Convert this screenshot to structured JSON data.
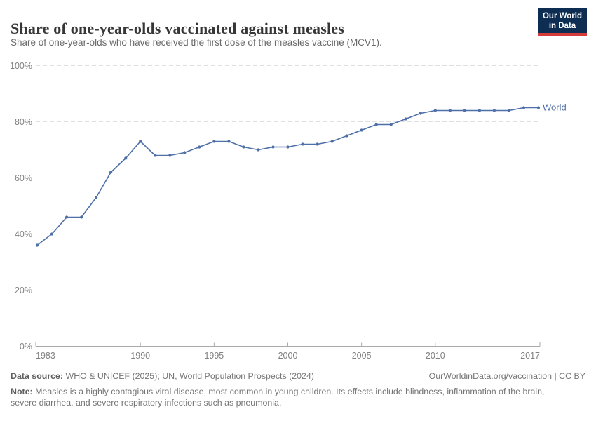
{
  "header": {
    "title": "Share of one-year-olds vaccinated against measles",
    "subtitle": "Share of one-year-olds who have received the first dose of the measles vaccine (MCV1).",
    "logo": {
      "line1": "Our World",
      "line2": "in Data",
      "bg_color": "#0d2d52",
      "accent_color": "#d43b3b"
    }
  },
  "chart_data": {
    "type": "line",
    "title": "Share of one-year-olds vaccinated against measles",
    "x": [
      1983,
      1984,
      1985,
      1986,
      1987,
      1988,
      1989,
      1990,
      1991,
      1992,
      1993,
      1994,
      1995,
      1996,
      1997,
      1998,
      1999,
      2000,
      2001,
      2002,
      2003,
      2004,
      2005,
      2006,
      2007,
      2008,
      2009,
      2010,
      2011,
      2012,
      2013,
      2014,
      2015,
      2016,
      2017
    ],
    "series": [
      {
        "name": "World",
        "color": "#4e6fa8",
        "values": [
          36,
          40,
          46,
          46,
          53,
          62,
          67,
          73,
          68,
          68,
          69,
          71,
          73,
          73,
          71,
          70,
          71,
          71,
          72,
          72,
          73,
          75,
          77,
          79,
          79,
          81,
          83,
          84,
          84,
          84,
          84,
          84,
          84,
          85,
          85
        ]
      }
    ],
    "unit": "%",
    "xlim": [
      1983,
      2017
    ],
    "ylim": [
      0,
      100
    ],
    "yticks": [
      0,
      20,
      40,
      60,
      80,
      100
    ],
    "ytick_labels": [
      "0%",
      "20%",
      "40%",
      "60%",
      "80%",
      "100%"
    ],
    "xticks": [
      1983,
      1990,
      1995,
      2000,
      2005,
      2010,
      2017
    ],
    "xtick_labels": [
      "1983",
      "1990",
      "1995",
      "2000",
      "2005",
      "2010",
      "2017"
    ],
    "grid": "horizontal-dashed",
    "legend_position": "line-end-label",
    "grid_color": "#e0e0e0",
    "axis_color": "#a9a9a9",
    "tick_label_color": "#818181"
  },
  "footer": {
    "datasource_label": "Data source:",
    "datasource_text": " WHO & UNICEF (2025); UN, World Population Prospects (2024)",
    "link_text": "OurWorldinData.org/vaccination | CC BY",
    "note_label": "Note:",
    "note_text": " Measles is a highly contagious viral disease, most common in young children. Its effects include blindness, inflammation of the brain, severe diarrhea, and severe respiratory infections such as pneumonia."
  }
}
